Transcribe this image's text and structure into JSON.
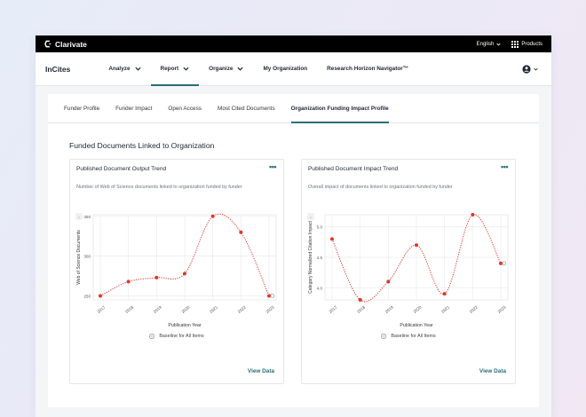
{
  "topbar": {
    "brand": "Clarivate",
    "language": "English",
    "products": "Products"
  },
  "navbar": {
    "product": "InCites",
    "items": [
      {
        "label": "Analyze",
        "dropdown": true,
        "active": false
      },
      {
        "label": "Report",
        "dropdown": true,
        "active": true
      },
      {
        "label": "Organize",
        "dropdown": true,
        "active": false
      },
      {
        "label": "My Organization",
        "dropdown": false,
        "active": false
      },
      {
        "label": "Research Horizon Navigator™",
        "dropdown": false,
        "active": false
      }
    ]
  },
  "tabs": [
    {
      "label": "Funder Profile",
      "active": false
    },
    {
      "label": "Funder Impact",
      "active": false
    },
    {
      "label": "Open Access",
      "active": false
    },
    {
      "label": "Most Cited Documents",
      "active": false
    },
    {
      "label": "Organization Funding Impact Profile",
      "active": true
    }
  ],
  "section_title": "Funded Documents Linked to Organization",
  "colors": {
    "accent": "#2b6e78",
    "series": "#e0352b",
    "topbar": "#000000"
  },
  "cards": [
    {
      "title": "Published Document Output Trend",
      "more": "•••",
      "description": "Number of Web of Science documents linked to organization funded by funder",
      "legend": "Baseline for All Items",
      "view_data": "View Data"
    },
    {
      "title": "Published Document Impact Trend",
      "more": "•••",
      "description": "Overall impact of documents linked to organization funded by funder",
      "legend": "Baseline for All Items",
      "view_data": "View Data"
    }
  ],
  "chart_data": [
    {
      "type": "line",
      "title": "Published Document Output Trend",
      "xlabel": "Publication Year",
      "ylabel": "Web of Science Documents",
      "x": [
        "2017",
        "2018",
        "2019",
        "2020",
        "2021",
        "2022",
        "2023"
      ],
      "y_ticks": [
        "350",
        "300",
        "250"
      ],
      "ylim": [
        245,
        352
      ],
      "series": [
        {
          "name": "",
          "values": [
            250,
            268,
            273,
            278,
            350,
            330,
            250
          ]
        }
      ],
      "legend": "Baseline for All Items",
      "grid": true
    },
    {
      "type": "line",
      "title": "Published Document Impact Trend",
      "xlabel": "Publication Year",
      "ylabel": "Category Normalized Citation Impact",
      "x": [
        "2017",
        "2018",
        "2019",
        "2020",
        "2021",
        "2022",
        "2023"
      ],
      "y_ticks": [
        "5.0",
        "4.5",
        "4.0"
      ],
      "ylim": [
        3.8,
        5.2
      ],
      "series": [
        {
          "name": "",
          "values": [
            4.8,
            3.7,
            4.1,
            4.7,
            3.9,
            5.3,
            4.4
          ]
        }
      ],
      "legend": "Baseline for All Items",
      "grid": true
    }
  ]
}
